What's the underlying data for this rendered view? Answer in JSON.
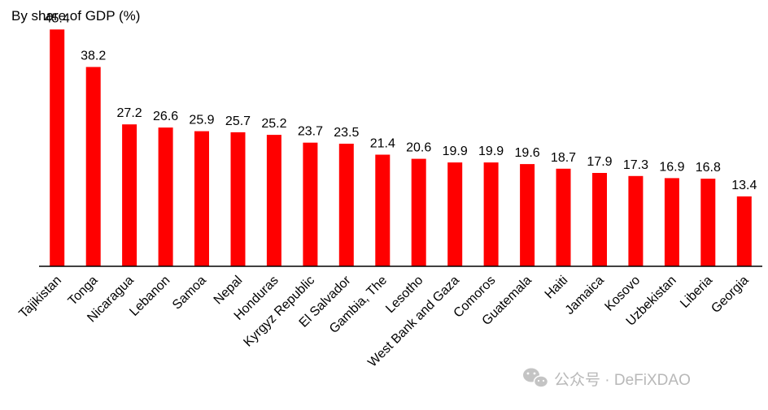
{
  "chart_data": {
    "type": "bar",
    "title": "By share of GDP (%)",
    "xlabel": "",
    "ylabel": "",
    "ylim": [
      0,
      47
    ],
    "grid": false,
    "legend": "none",
    "bar_color": "#ff0000",
    "categories": [
      "Tajikistan",
      "Tonga",
      "Nicaragua",
      "Lebanon",
      "Samoa",
      "Nepal",
      "Honduras",
      "Kyrgyz Republic",
      "El Salvador",
      "Gambia, The",
      "Lesotho",
      "West Bank and Gaza",
      "Comoros",
      "Guatemala",
      "Haiti",
      "Jamaica",
      "Kosovo",
      "Uzbekistan",
      "Liberia",
      "Georgia"
    ],
    "values": [
      45.4,
      38.2,
      27.2,
      26.6,
      25.9,
      25.7,
      25.2,
      23.7,
      23.5,
      21.4,
      20.6,
      19.9,
      19.9,
      19.6,
      18.7,
      17.9,
      17.3,
      16.9,
      16.8,
      13.4
    ],
    "value_labels": [
      "45.4",
      "38.2",
      "27.2",
      "26.6",
      "25.9",
      "25.7",
      "25.2",
      "23.7",
      "23.5",
      "21.4",
      "20.6",
      "19.9",
      "19.9",
      "19.6",
      "18.7",
      "17.9",
      "17.3",
      "16.9",
      "16.8",
      "13.4"
    ]
  },
  "watermark": {
    "text": "公众号 · DeFiXDAO",
    "icon": "wechat-icon",
    "color": "#b8b8b8"
  }
}
